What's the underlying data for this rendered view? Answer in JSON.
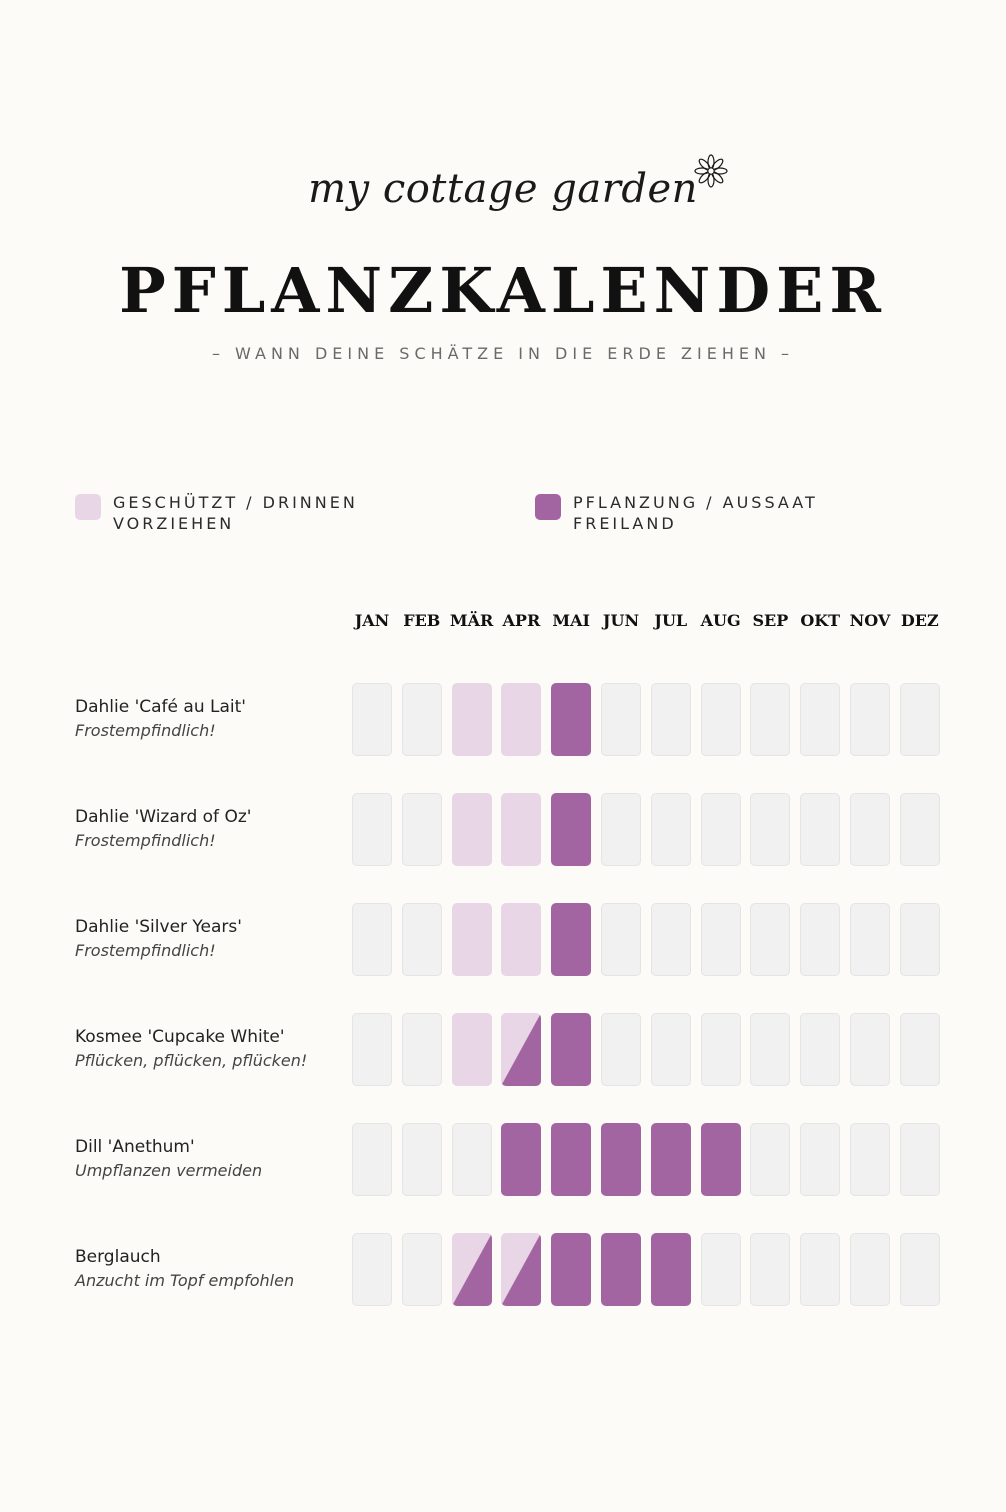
{
  "brand": {
    "logo_text": "my cottage garden",
    "flower": "flower-icon"
  },
  "header": {
    "title": "PFLANZKALENDER",
    "subtitle": "– WANN DEINE SCHÄTZE IN DIE ERDE ZIEHEN –"
  },
  "colors": {
    "indoor": "#e8d5e6",
    "outdoor": "#a365a2",
    "empty": "#f1f1f1",
    "background": "#fcfbf8"
  },
  "chart_data": {
    "type": "table",
    "title": "PFLANZKALENDER",
    "legend": [
      {
        "key": "indoor",
        "label": "GESCHÜTZT / DRINNEN\nVORZIEHEN"
      },
      {
        "key": "outdoor",
        "label": "PFLANZUNG / AUSSAAT\nFREILAND"
      }
    ],
    "months": [
      "JAN",
      "FEB",
      "MÄR",
      "APR",
      "MAI",
      "JUN",
      "JUL",
      "AUG",
      "SEP",
      "OKT",
      "NOV",
      "DEZ"
    ],
    "rows": [
      {
        "name": "Dahlie 'Café au Lait'",
        "note": "Frostempfindlich!",
        "cells": [
          "empty",
          "empty",
          "indoor",
          "indoor",
          "outdoor",
          "empty",
          "empty",
          "empty",
          "empty",
          "empty",
          "empty",
          "empty"
        ]
      },
      {
        "name": "Dahlie 'Wizard of Oz'",
        "note": "Frostempfindlich!",
        "cells": [
          "empty",
          "empty",
          "indoor",
          "indoor",
          "outdoor",
          "empty",
          "empty",
          "empty",
          "empty",
          "empty",
          "empty",
          "empty"
        ]
      },
      {
        "name": "Dahlie 'Silver Years'",
        "note": "Frostempfindlich!",
        "cells": [
          "empty",
          "empty",
          "indoor",
          "indoor",
          "outdoor",
          "empty",
          "empty",
          "empty",
          "empty",
          "empty",
          "empty",
          "empty"
        ]
      },
      {
        "name": "Kosmee 'Cupcake White'",
        "note": "Pflücken, pflücken, pflücken!",
        "cells": [
          "empty",
          "empty",
          "indoor",
          "split",
          "outdoor",
          "empty",
          "empty",
          "empty",
          "empty",
          "empty",
          "empty",
          "empty"
        ]
      },
      {
        "name": "Dill 'Anethum'",
        "note": "Umpflanzen vermeiden",
        "cells": [
          "empty",
          "empty",
          "empty",
          "outdoor",
          "outdoor",
          "outdoor",
          "outdoor",
          "outdoor",
          "empty",
          "empty",
          "empty",
          "empty"
        ]
      },
      {
        "name": "Berglauch",
        "note": "Anzucht im Topf empfohlen",
        "cells": [
          "empty",
          "empty",
          "split",
          "split",
          "outdoor",
          "outdoor",
          "outdoor",
          "empty",
          "empty",
          "empty",
          "empty",
          "empty"
        ]
      }
    ]
  }
}
